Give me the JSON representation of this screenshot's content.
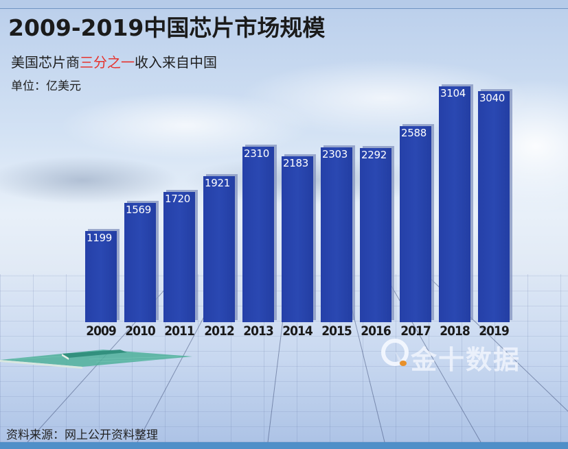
{
  "header": {
    "title": "2009-2019中国芯片市场规模",
    "subtitle_before": "美国芯片商",
    "subtitle_highlight": "三分之一",
    "subtitle_after": "收入来自中国",
    "unit": "单位：亿美元"
  },
  "footer": {
    "source": "资料来源：网上公开资料整理"
  },
  "watermark": {
    "text": "金十数据",
    "icon": "jin10-logo-icon"
  },
  "colors": {
    "bar": "#2a45ae",
    "highlight": "#e6322c",
    "title": "#1b1b1b",
    "bottom_band": "#4f8fc8"
  },
  "bars": [
    {
      "year": "2009",
      "value": "1199"
    },
    {
      "year": "2010",
      "value": "1569"
    },
    {
      "year": "2011",
      "value": "1720"
    },
    {
      "year": "2012",
      "value": "1921"
    },
    {
      "year": "2013",
      "value": "2310"
    },
    {
      "year": "2014",
      "value": "2183"
    },
    {
      "year": "2015",
      "value": "2303"
    },
    {
      "year": "2016",
      "value": "2292"
    },
    {
      "year": "2017",
      "value": "2588"
    },
    {
      "year": "2018",
      "value": "3104"
    },
    {
      "year": "2019",
      "value": "3040"
    }
  ],
  "chart_data": {
    "type": "bar",
    "title": "2009-2019中国芯片市场规模",
    "subtitle": "美国芯片商三分之一收入来自中国",
    "unit": "单位：亿美元",
    "categories": [
      "2009",
      "2010",
      "2011",
      "2012",
      "2013",
      "2014",
      "2015",
      "2016",
      "2017",
      "2018",
      "2019"
    ],
    "values": [
      1199,
      1569,
      1720,
      1921,
      2310,
      2183,
      2303,
      2292,
      2588,
      3104,
      3040
    ],
    "xlabel": "",
    "ylabel": "亿美元",
    "ylim": [
      0,
      3300
    ],
    "grid": false,
    "legend": null,
    "data_labels": true,
    "source": "资料来源：网上公开资料整理"
  }
}
